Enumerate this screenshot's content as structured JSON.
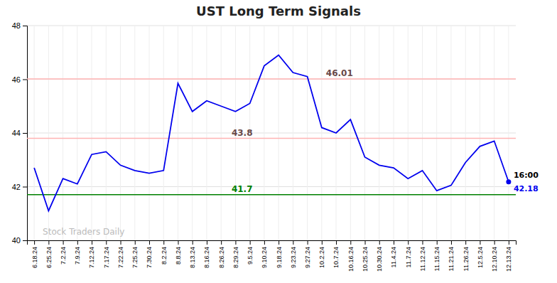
{
  "chart_data": {
    "type": "line",
    "title": "UST Long Term Signals",
    "categories": [
      "6.18.24",
      "6.25.24",
      "7.2.24",
      "7.9.24",
      "7.12.24",
      "7.17.24",
      "7.22.24",
      "7.25.24",
      "7.30.24",
      "8.2.24",
      "8.8.24",
      "8.13.24",
      "8.16.24",
      "8.26.24",
      "8.29.24",
      "9.5.24",
      "9.10.24",
      "9.18.24",
      "9.23.24",
      "9.27.24",
      "10.2.24",
      "10.7.24",
      "10.16.24",
      "10.25.24",
      "10.30.24",
      "11.4.24",
      "11.7.24",
      "11.12.24",
      "11.15.24",
      "11.21.24",
      "11.26.24",
      "12.5.24",
      "12.10.24",
      "12.13.24"
    ],
    "values": [
      42.7,
      41.1,
      42.3,
      42.1,
      43.2,
      43.3,
      42.8,
      42.6,
      42.5,
      42.6,
      45.85,
      44.8,
      45.2,
      45.0,
      44.8,
      45.1,
      46.5,
      46.9,
      46.25,
      46.1,
      44.2,
      44.0,
      44.5,
      43.1,
      42.8,
      42.7,
      42.3,
      42.6,
      41.85,
      42.05,
      42.9,
      43.5,
      43.7,
      42.18
    ],
    "color": "#0000ee",
    "ylim": [
      40,
      48
    ],
    "yticks": [
      40,
      42,
      44,
      46,
      48
    ],
    "grid": true,
    "hlines": [
      {
        "value": 41.7,
        "label": "41.7",
        "color": "green"
      },
      {
        "value": 43.8,
        "label": "43.8",
        "color": "#ffb3b3"
      },
      {
        "value": 46.01,
        "label": "46.01",
        "color": "#ffb3b3"
      }
    ],
    "last_point": {
      "value": 42.18,
      "time": "16:00"
    },
    "watermark": "Stock Traders Daily"
  }
}
